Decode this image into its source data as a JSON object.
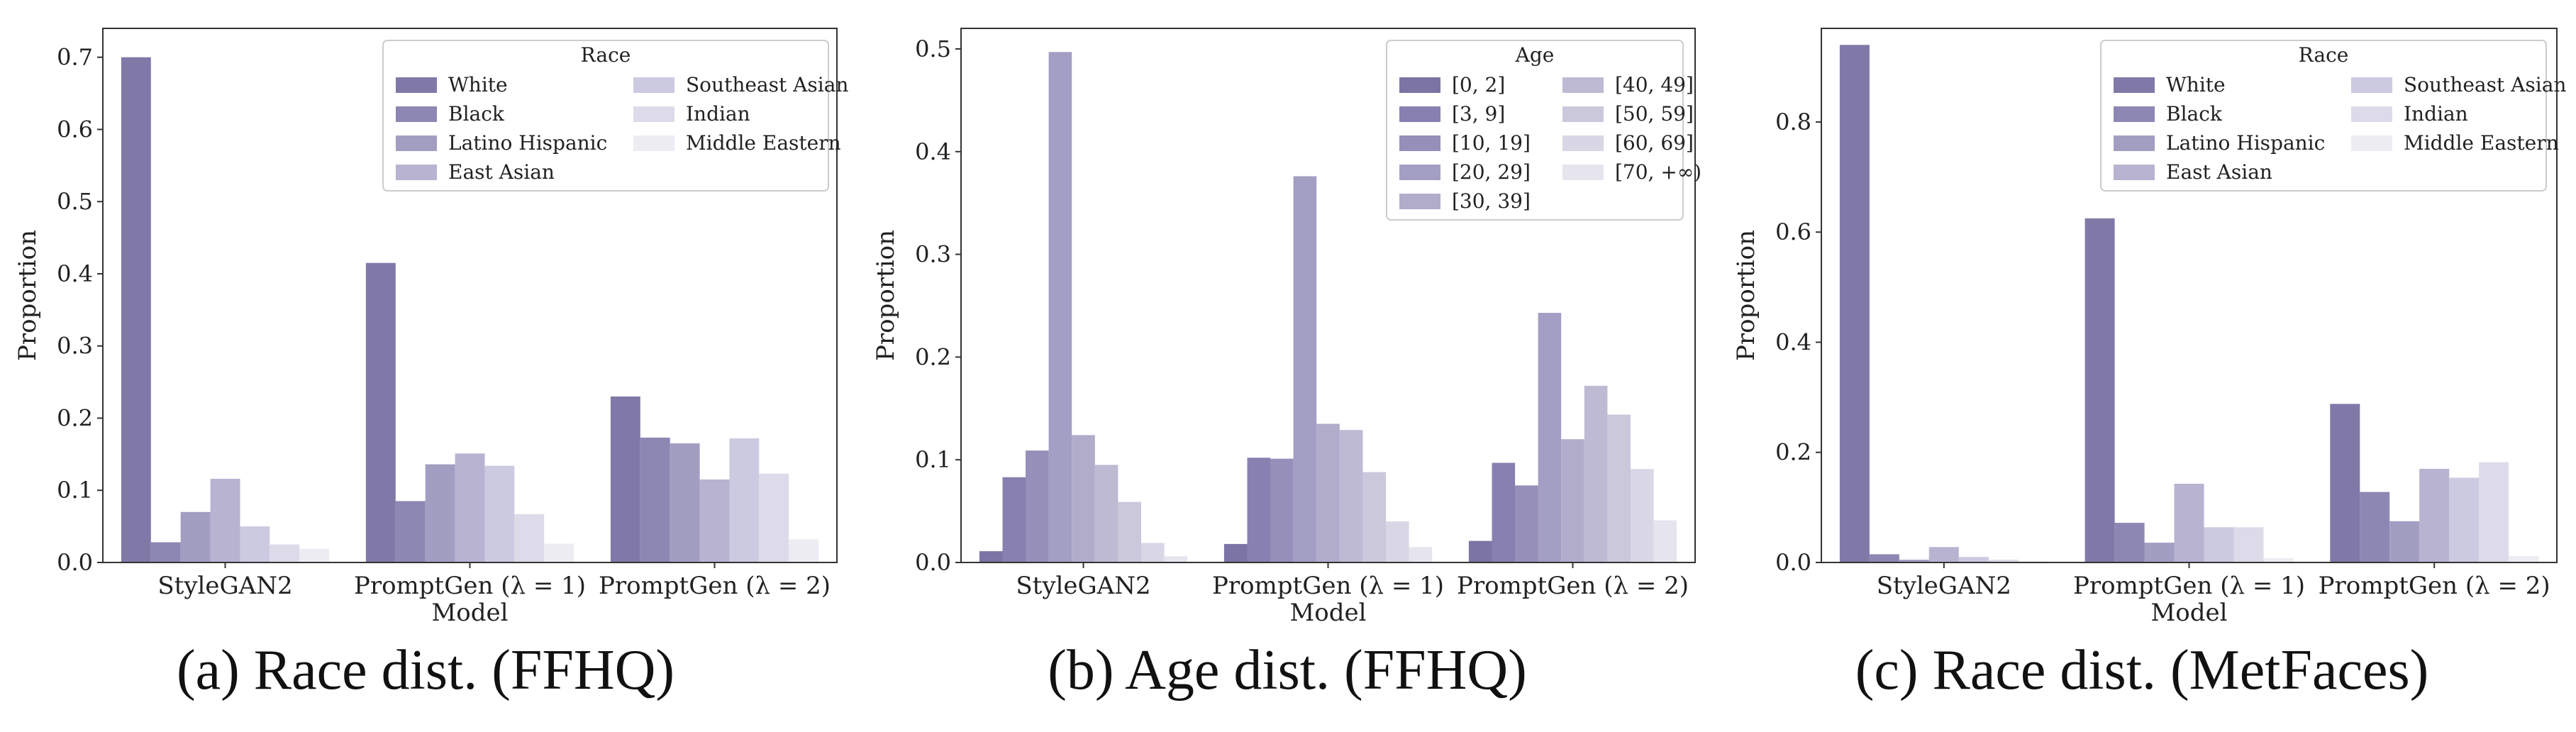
{
  "captions": [
    "(a)  Race dist. (FFHQ)",
    "(b)  Age dist. (FFHQ)",
    "(c)  Race dist. (MetFaces)"
  ],
  "chart_data": [
    {
      "type": "bar",
      "ylabel": "Proportion",
      "xlabel": "Model",
      "categories": [
        "StyleGAN2",
        "PromptGen (λ = 1)",
        "PromptGen (λ = 2)"
      ],
      "ylim": [
        0,
        0.74
      ],
      "yticks": [
        "0.0",
        "0.1",
        "0.2",
        "0.3",
        "0.4",
        "0.5",
        "0.6",
        "0.7"
      ],
      "ytick_values": [
        0,
        0.1,
        0.2,
        0.3,
        0.4,
        0.5,
        0.6,
        0.7
      ],
      "legend_title": "Race",
      "legend_position": "top-right",
      "legend_columns": 2,
      "legend_rows": 4,
      "colors": [
        "#8079a8",
        "#8d87b3",
        "#a29ec2",
        "#b7b3d1",
        "#cccae0",
        "#dddbe9",
        "#edecf2"
      ],
      "series": [
        {
          "name": "White",
          "values": [
            0.7,
            0.415,
            0.23
          ]
        },
        {
          "name": "Black",
          "values": [
            0.028,
            0.085,
            0.173
          ]
        },
        {
          "name": "Latino Hispanic",
          "values": [
            0.07,
            0.136,
            0.165
          ]
        },
        {
          "name": "East Asian",
          "values": [
            0.116,
            0.151,
            0.115
          ]
        },
        {
          "name": "Southeast Asian",
          "values": [
            0.05,
            0.134,
            0.172
          ]
        },
        {
          "name": "Indian",
          "values": [
            0.025,
            0.067,
            0.123
          ]
        },
        {
          "name": "Middle Eastern",
          "values": [
            0.019,
            0.026,
            0.032
          ]
        }
      ]
    },
    {
      "type": "bar",
      "ylabel": "Proportion",
      "xlabel": "Model",
      "categories": [
        "StyleGAN2",
        "PromptGen (λ = 1)",
        "PromptGen (λ = 2)"
      ],
      "ylim": [
        0,
        0.52
      ],
      "yticks": [
        "0.0",
        "0.1",
        "0.2",
        "0.3",
        "0.4",
        "0.5"
      ],
      "ytick_values": [
        0,
        0.1,
        0.2,
        0.3,
        0.4,
        0.5
      ],
      "legend_title": "Age",
      "legend_position": "top-right",
      "legend_columns": 2,
      "legend_rows": 5,
      "colors": [
        "#7b74a4",
        "#8780b0",
        "#958fb9",
        "#a39ec3",
        "#b0acca",
        "#bebad3",
        "#cbc8dc",
        "#d9d7e5",
        "#e6e5ee",
        "#f1f0f5"
      ],
      "series": [
        {
          "name": "[0, 2]",
          "values": [
            0.011,
            0.018,
            0.021
          ]
        },
        {
          "name": "[3, 9]",
          "values": [
            0.083,
            0.102,
            0.097
          ]
        },
        {
          "name": "[10, 19]",
          "values": [
            0.109,
            0.101,
            0.075
          ]
        },
        {
          "name": "[20, 29]",
          "values": [
            0.497,
            0.376,
            0.243
          ]
        },
        {
          "name": "[30, 39]",
          "values": [
            0.124,
            0.135,
            0.12
          ]
        },
        {
          "name": "[40, 49]",
          "values": [
            0.095,
            0.129,
            0.172
          ]
        },
        {
          "name": "[50, 59]",
          "values": [
            0.059,
            0.088,
            0.144
          ]
        },
        {
          "name": "[60, 69]",
          "values": [
            0.019,
            0.04,
            0.091
          ]
        },
        {
          "name": "[70, +∞)",
          "values": [
            0.006,
            0.015,
            0.041
          ]
        }
      ]
    },
    {
      "type": "bar",
      "ylabel": "Proportion",
      "xlabel": "Model",
      "categories": [
        "StyleGAN2",
        "PromptGen (λ = 1)",
        "PromptGen (λ = 2)"
      ],
      "ylim": [
        0,
        0.97
      ],
      "yticks": [
        "0.0",
        "0.2",
        "0.4",
        "0.6",
        "0.8"
      ],
      "ytick_values": [
        0,
        0.2,
        0.4,
        0.6,
        0.8
      ],
      "legend_title": "Race",
      "legend_position": "top-right",
      "legend_columns": 2,
      "legend_rows": 4,
      "colors": [
        "#8079a8",
        "#8d87b3",
        "#a29ec2",
        "#b7b3d1",
        "#cccae0",
        "#dddbe9",
        "#edecf2"
      ],
      "series": [
        {
          "name": "White",
          "values": [
            0.94,
            0.625,
            0.288
          ]
        },
        {
          "name": "Black",
          "values": [
            0.015,
            0.072,
            0.128
          ]
        },
        {
          "name": "Latino Hispanic",
          "values": [
            0.005,
            0.036,
            0.075
          ]
        },
        {
          "name": "East Asian",
          "values": [
            0.028,
            0.143,
            0.17
          ]
        },
        {
          "name": "Southeast Asian",
          "values": [
            0.01,
            0.064,
            0.154
          ]
        },
        {
          "name": "Indian",
          "values": [
            0.005,
            0.064,
            0.182
          ]
        },
        {
          "name": "Middle Eastern",
          "values": [
            0.002,
            0.008,
            0.012
          ]
        }
      ]
    }
  ]
}
